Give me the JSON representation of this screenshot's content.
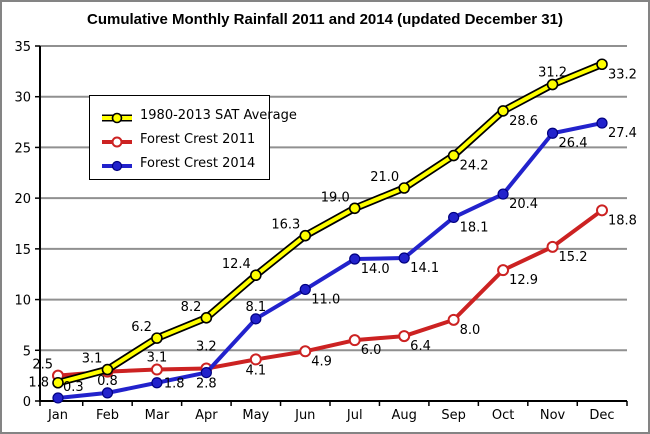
{
  "chart_data": {
    "type": "line",
    "title": "Cumulative Monthly Rainfall 2011 and 2014 (updated December 31)",
    "xlabel": "",
    "ylabel": "",
    "ylim": [
      0,
      35
    ],
    "ytick_step": 5,
    "ytick_labels": [
      "0",
      "5",
      "10",
      "15",
      "20",
      "25",
      "30",
      "35"
    ],
    "grid": "horizontal",
    "grid_color": "#909090",
    "axis_color": "#000000",
    "legend_position": "upper-left-inside",
    "categories": [
      "Jan",
      "Feb",
      "Mar",
      "Apr",
      "May",
      "Jun",
      "Jul",
      "Aug",
      "Sep",
      "Oct",
      "Nov",
      "Dec"
    ],
    "series": [
      {
        "name": "1980-2013 SAT Average",
        "values": [
          1.8,
          3.1,
          6.2,
          8.2,
          12.4,
          16.3,
          19.0,
          21.0,
          24.2,
          28.6,
          31.2,
          33.2
        ],
        "labels": [
          "1.8",
          "3.1",
          "6.2",
          "8.2",
          "12.4",
          "16.3",
          "19.0",
          "21.0",
          "24.2",
          "28.6",
          "31.2",
          "33.2"
        ],
        "label_pos": [
          "l",
          "al",
          "al",
          "al",
          "al",
          "al",
          "al",
          "al",
          "br",
          "br",
          "a",
          "br"
        ],
        "line_color": "#FFFF00",
        "line_outline": "#000000",
        "marker_fill": "#FFFF00",
        "marker_stroke": "#000000",
        "marker_stroke_width": 1.6,
        "z": 3
      },
      {
        "name": "Forest Crest 2011",
        "values": [
          2.5,
          2.9,
          3.1,
          3.2,
          4.1,
          4.9,
          6.0,
          6.4,
          8.0,
          12.9,
          15.2,
          18.8
        ],
        "labels": [
          "2.5",
          "",
          "3.1",
          "3.2",
          "4.1",
          "4.9",
          "6.0",
          "6.4",
          "8.0",
          "12.9",
          "15.2",
          "18.8"
        ],
        "label_pos": [
          "al",
          "",
          "a",
          "a2",
          "b",
          "br",
          "br",
          "br",
          "br",
          "br",
          "br",
          "br"
        ],
        "line_color": "#CC2222",
        "marker_fill": "#FFFFFF",
        "marker_stroke": "#CC2222",
        "marker_stroke_width": 2,
        "z": 1
      },
      {
        "name": "Forest Crest 2014",
        "values": [
          0.3,
          0.8,
          1.8,
          2.8,
          8.1,
          11.0,
          14.0,
          14.1,
          18.1,
          20.4,
          26.4,
          27.4
        ],
        "labels": [
          "0.3",
          "0.8",
          "1.8",
          "2.8",
          "8.1",
          "11.0",
          "14.0",
          "14.1",
          "18.1",
          "20.4",
          "26.4",
          "27.4"
        ],
        "label_pos": [
          "ar",
          "a",
          "r",
          "b",
          "a",
          "br",
          "br",
          "br",
          "br",
          "br",
          "br",
          "br"
        ],
        "line_color": "#2222CC",
        "marker_fill": "#2222CC",
        "marker_stroke": "#000080",
        "marker_stroke_width": 1.2,
        "z": 2
      }
    ]
  }
}
